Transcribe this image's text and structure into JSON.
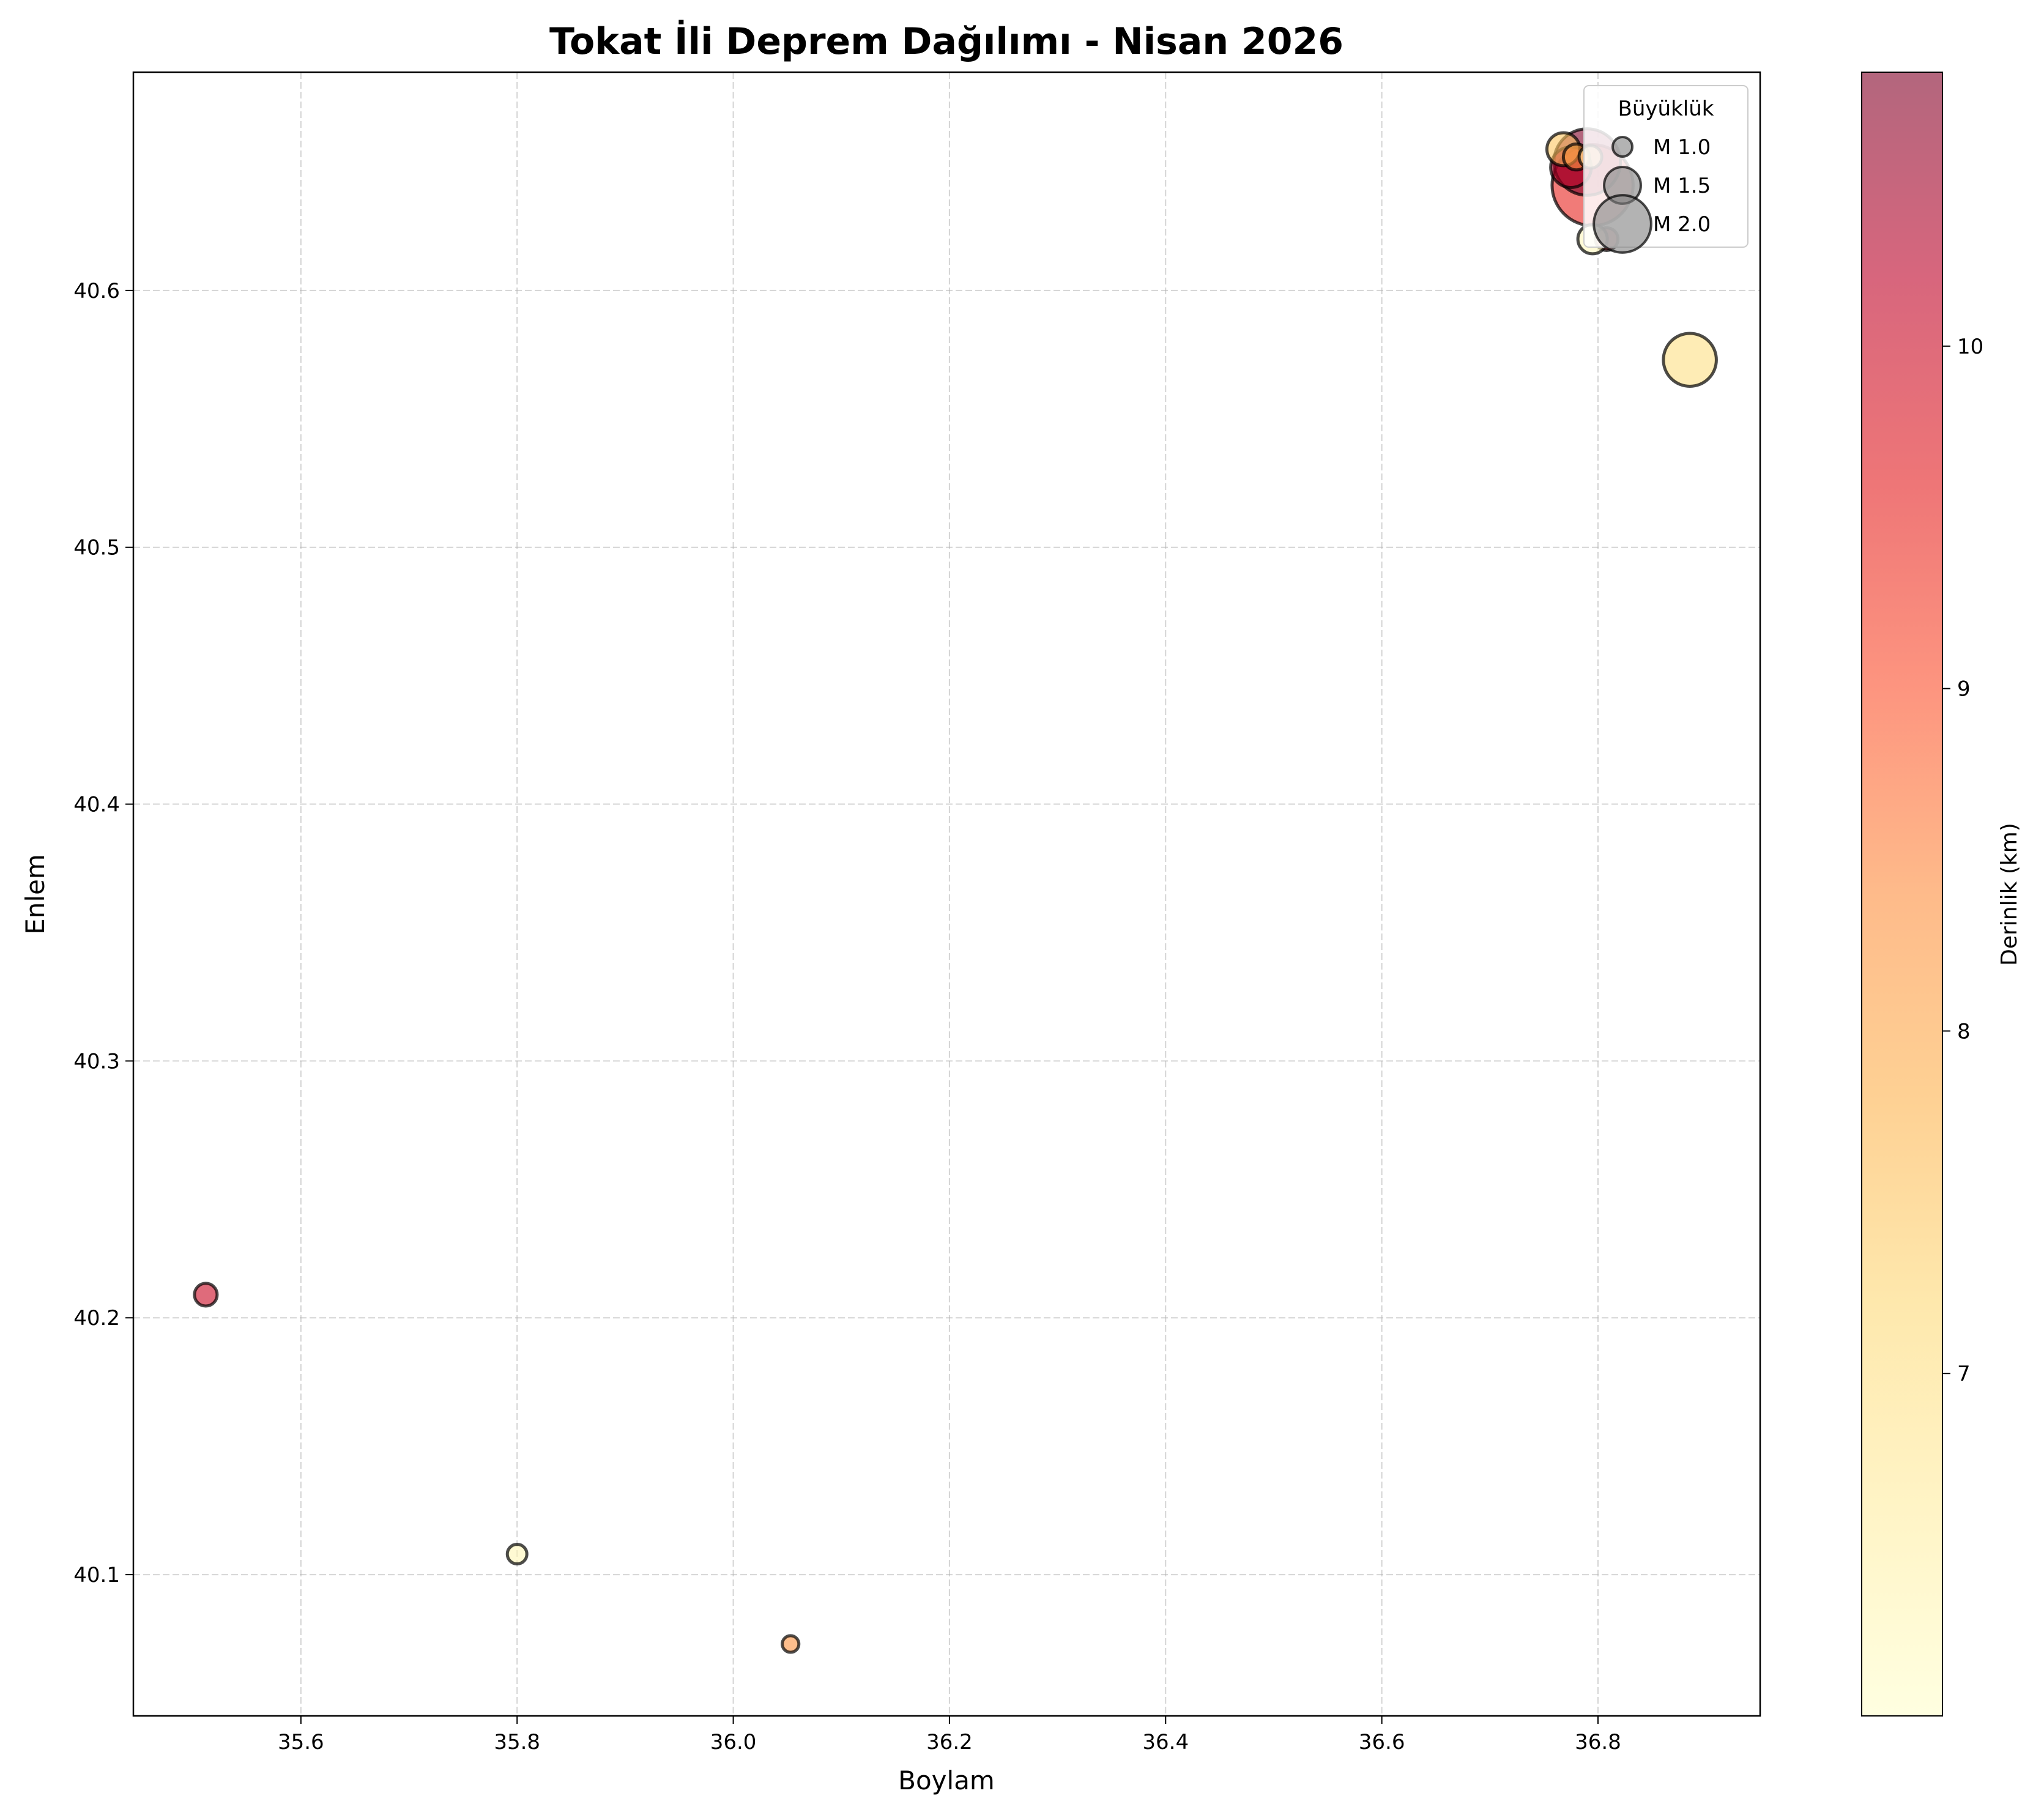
{
  "chart_data": {
    "type": "scatter",
    "title": "Tokat İli Deprem Dağılımı - Nisan 2026",
    "xlabel": "Boylam",
    "ylabel": "Enlem",
    "xlim": [
      35.445,
      36.95
    ],
    "ylim": [
      40.045,
      40.685
    ],
    "xticks": [
      "35.6",
      "35.8",
      "36.0",
      "36.2",
      "36.4",
      "36.6",
      "36.8"
    ],
    "yticks": [
      "40.1",
      "40.2",
      "40.3",
      "40.4",
      "40.5",
      "40.6"
    ],
    "grid": true,
    "size_encoding": "magnitude",
    "color_encoding": "depth_km",
    "colormap": "YlOrRd",
    "colorbar": {
      "label": "Derinlik (km)",
      "range": [
        6.0,
        10.8
      ],
      "ticks": [
        "7",
        "8",
        "9",
        "10"
      ]
    },
    "legend": {
      "title": "Büyüklük",
      "placement": "top-right",
      "entries": [
        {
          "label": "M 1.0",
          "magnitude": 1.0
        },
        {
          "label": "M 1.5",
          "magnitude": 1.5
        },
        {
          "label": "M 2.0",
          "magnitude": 2.0
        }
      ]
    },
    "points": [
      {
        "lon": 35.512,
        "lat": 40.209,
        "magnitude": 1.1,
        "depth": 10.0
      },
      {
        "lon": 35.8,
        "lat": 40.108,
        "magnitude": 1.0,
        "depth": 6.3
      },
      {
        "lon": 36.053,
        "lat": 40.073,
        "magnitude": 0.9,
        "depth": 8.3
      },
      {
        "lon": 36.885,
        "lat": 40.573,
        "magnitude": 1.9,
        "depth": 7.0
      },
      {
        "lon": 36.795,
        "lat": 40.641,
        "magnitude": 2.5,
        "depth": 9.5
      },
      {
        "lon": 36.79,
        "lat": 40.65,
        "magnitude": 2.2,
        "depth": 10.8
      },
      {
        "lon": 36.775,
        "lat": 40.648,
        "magnitude": 1.6,
        "depth": 10.3
      },
      {
        "lon": 36.768,
        "lat": 40.655,
        "magnitude": 1.4,
        "depth": 7.5
      },
      {
        "lon": 36.78,
        "lat": 40.652,
        "magnitude": 1.2,
        "depth": 8.2
      },
      {
        "lon": 36.793,
        "lat": 40.652,
        "magnitude": 1.1,
        "depth": 6.6
      },
      {
        "lon": 36.808,
        "lat": 40.62,
        "magnitude": 1.1,
        "depth": 9.8
      },
      {
        "lon": 36.795,
        "lat": 40.62,
        "magnitude": 1.3,
        "depth": 6.2
      }
    ]
  }
}
